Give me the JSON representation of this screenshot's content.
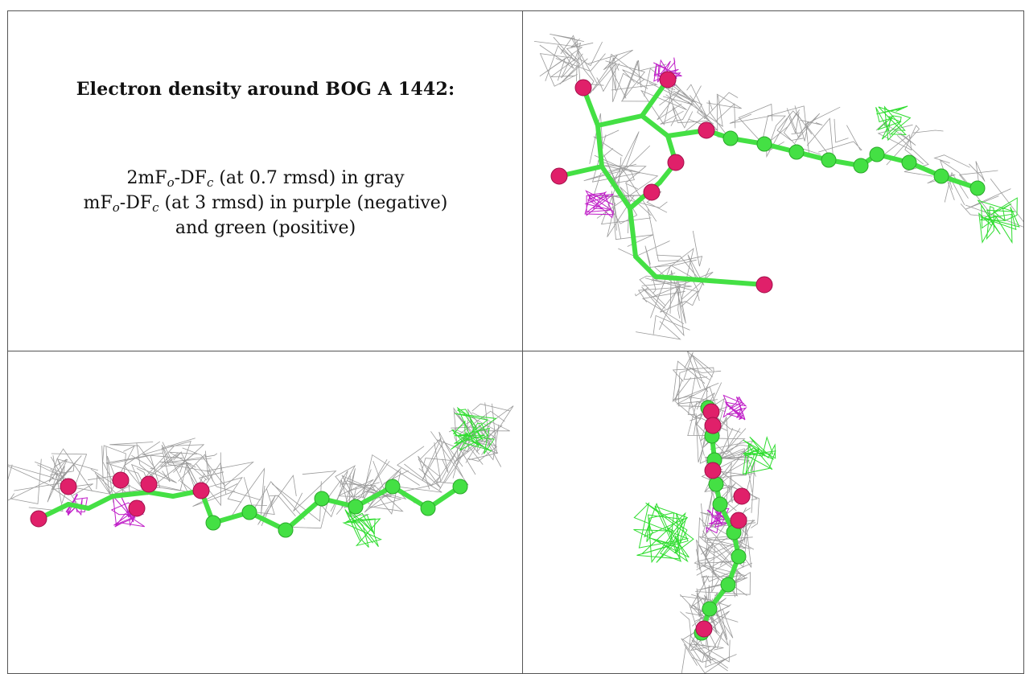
{
  "caption": {
    "title": "Electron density around BOG A 1442:",
    "line1": {
      "part1": "2mF",
      "sub1": "o",
      "part2": "-DF",
      "sub2": "c",
      "part3": " (at 0.7 rmsd) in gray"
    },
    "line2": {
      "part1": "mF",
      "sub1": "o",
      "part2": "-DF",
      "sub2": "c",
      "part3": " (at 3 rmsd) in purple (negative)"
    },
    "line3": "and green (positive)"
  },
  "colors": {
    "mesh_2fofc": "#9a9a9a",
    "mesh_negative": "#c020c8",
    "mesh_positive": "#30dd30",
    "carbon": "#44e044",
    "oxygen": "#e0206a",
    "border": "#555555"
  },
  "views": [
    "view-top",
    "view-side",
    "view-end"
  ]
}
